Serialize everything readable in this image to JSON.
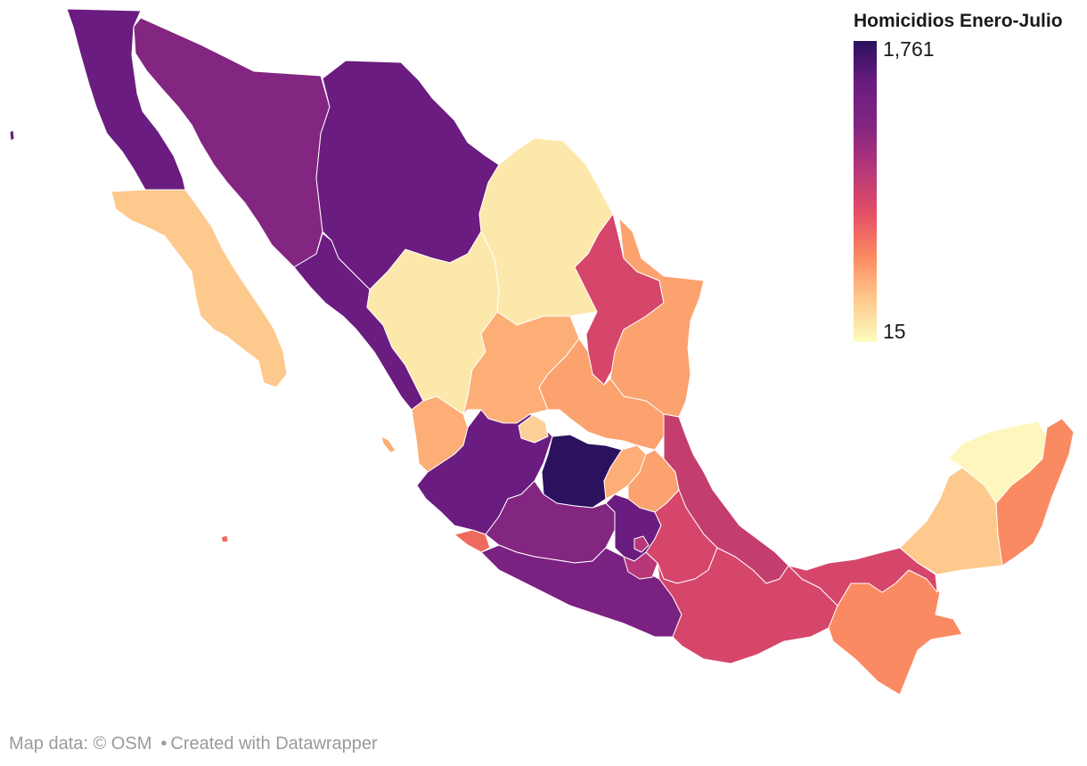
{
  "legend": {
    "title": "Homicidios Enero-Julio",
    "max_label": "1,761",
    "min_label": "15",
    "color_scale": [
      "#fcfdbf",
      "#fec98d",
      "#fc8961",
      "#e34e65",
      "#b73779",
      "#832681",
      "#6a1c80",
      "#2c115f"
    ]
  },
  "footer": {
    "map_data": "Map data: © OSM",
    "separator": "•",
    "created_with": "Created with Datawrapper"
  },
  "regions": [
    {
      "id": "baja-california",
      "color": "#6a1c80"
    },
    {
      "id": "baja-california-sur",
      "color": "#fec98d"
    },
    {
      "id": "sonora",
      "color": "#832681"
    },
    {
      "id": "chihuahua",
      "color": "#6a1c80"
    },
    {
      "id": "coahuila",
      "color": "#fde8ac"
    },
    {
      "id": "nuevo-leon",
      "color": "#d6456a"
    },
    {
      "id": "tamaulipas",
      "color": "#fba26f"
    },
    {
      "id": "sinaloa",
      "color": "#6a1c80"
    },
    {
      "id": "durango",
      "color": "#fde8ac"
    },
    {
      "id": "zacatecas",
      "color": "#fcae76"
    },
    {
      "id": "san-luis-potosi",
      "color": "#fba26f"
    },
    {
      "id": "nayarit",
      "color": "#fcae76"
    },
    {
      "id": "jalisco",
      "color": "#6a1c80"
    },
    {
      "id": "aguascalientes",
      "color": "#fdd09a"
    },
    {
      "id": "guanajuato",
      "color": "#2c115f"
    },
    {
      "id": "queretaro",
      "color": "#fcae76"
    },
    {
      "id": "hidalgo",
      "color": "#fba26f"
    },
    {
      "id": "veracruz",
      "color": "#c43d6f"
    },
    {
      "id": "michoacan",
      "color": "#832681"
    },
    {
      "id": "colima",
      "color": "#ef6a5e"
    },
    {
      "id": "guerrero",
      "color": "#7a2181"
    },
    {
      "id": "mexico",
      "color": "#6a1c80"
    },
    {
      "id": "cdmx",
      "color": "#b73779"
    },
    {
      "id": "morelos",
      "color": "#b73779"
    },
    {
      "id": "tlaxcala",
      "color": "#fdd09a"
    },
    {
      "id": "puebla",
      "color": "#d6456a"
    },
    {
      "id": "oaxaca",
      "color": "#d6456a"
    },
    {
      "id": "chiapas",
      "color": "#fa8a62"
    },
    {
      "id": "tabasco",
      "color": "#d6456a"
    },
    {
      "id": "campeche",
      "color": "#fec98d"
    },
    {
      "id": "yucatan",
      "color": "#fdf7bd"
    },
    {
      "id": "quintana-roo",
      "color": "#fa8a62"
    }
  ]
}
